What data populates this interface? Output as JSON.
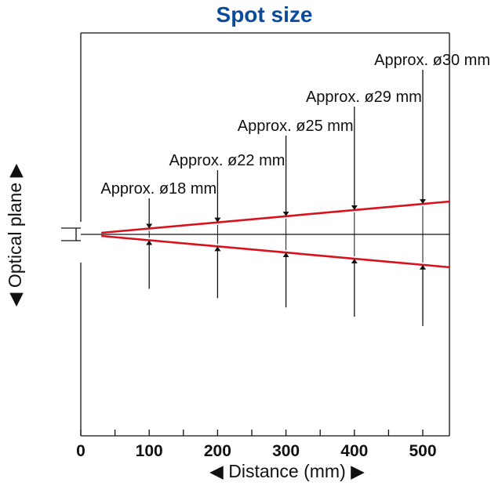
{
  "title": "Spot size",
  "y_axis_label": "◀ Optical plane ▶",
  "x_axis_label": "◀ Distance (mm) ▶",
  "beam_color": "#d9121e",
  "title_color": "#0a4a9c",
  "chart_data": {
    "type": "line",
    "x_unit": "mm",
    "xlim": [
      0,
      540
    ],
    "x_ticks": [
      "0",
      "100",
      "200",
      "300",
      "400",
      "500"
    ],
    "series": [
      {
        "values": [
          {
            "x": 100,
            "diameter_mm": 18
          },
          {
            "x": 200,
            "diameter_mm": 22
          },
          {
            "x": 300,
            "diameter_mm": 25
          },
          {
            "x": 400,
            "diameter_mm": 29
          },
          {
            "x": 500,
            "diameter_mm": 30
          }
        ]
      }
    ],
    "annotations": [
      {
        "x": 100,
        "label": "Approx. ø18 mm"
      },
      {
        "x": 200,
        "label": "Approx. ø22 mm"
      },
      {
        "x": 300,
        "label": "Approx. ø25 mm"
      },
      {
        "x": 400,
        "label": "Approx. ø29 mm"
      },
      {
        "x": 500,
        "label": "Approx. ø30 mm"
      }
    ]
  }
}
